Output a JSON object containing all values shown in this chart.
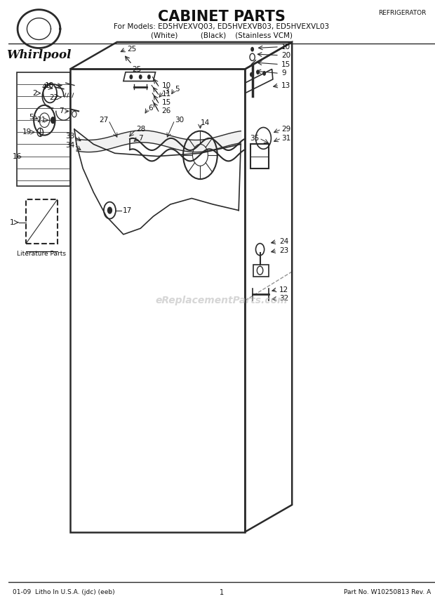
{
  "title": "CABINET PARTS",
  "subtitle1": "For Models: ED5HVEXVQ03, ED5HVEXVB03, ED5HVEXVL03",
  "subtitle2": "(White)          (Black)    (Stainless VCM)",
  "top_right_label": "REFRIGERATOR",
  "footer_left": "01-09  Litho In U.S.A. (jdc) (eeb)",
  "footer_center": "1",
  "footer_right": "Part No. W10250813 Rev. A",
  "whirlpool_text": "Whirlpool",
  "literature_parts_label": "Literature Parts",
  "background_color": "#ffffff",
  "line_color": "#2a2a2a",
  "text_color": "#111111"
}
